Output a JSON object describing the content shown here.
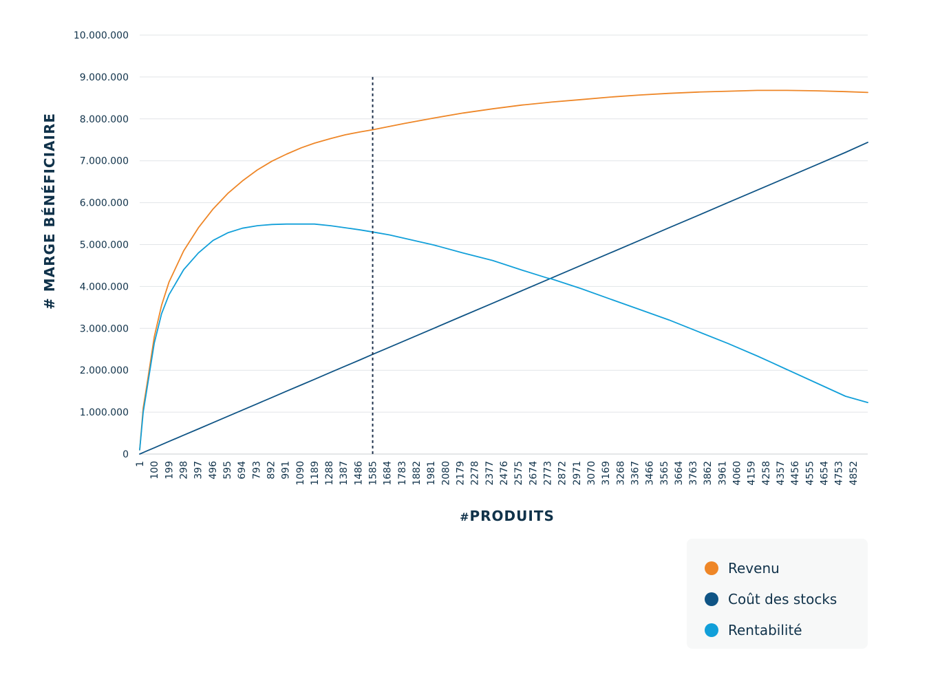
{
  "chart_data": {
    "type": "line",
    "title": "",
    "xlabel_prefix": "#",
    "xlabel": "PRODUITS",
    "ylabel": "# MARGE BÉNÉFICIAIRE",
    "x_ticks": [
      "1",
      "100",
      "199",
      "298",
      "397",
      "496",
      "595",
      "694",
      "793",
      "892",
      "991",
      "1090",
      "1189",
      "1288",
      "1387",
      "1486",
      "1585",
      "1684",
      "1783",
      "1882",
      "1981",
      "2080",
      "2179",
      "2278",
      "2377",
      "2476",
      "2575",
      "2674",
      "2773",
      "2872",
      "2971",
      "3070",
      "3169",
      "3268",
      "3367",
      "3466",
      "3565",
      "3664",
      "3763",
      "3862",
      "3961",
      "4060",
      "4159",
      "4258",
      "4357",
      "4456",
      "4555",
      "4654",
      "4753",
      "4852"
    ],
    "xlim": [
      1,
      4951
    ],
    "y_ticks": [
      "0",
      "1.000.000",
      "2.000.000",
      "3.000.000",
      "4.000.000",
      "5.000.000",
      "6.000.000",
      "7.000.000",
      "8.000.000",
      "9.000.000",
      "10.000.000"
    ],
    "ylim": [
      0,
      10000000
    ],
    "grid": true,
    "reference_line": {
      "x": 1585,
      "y_top": 9000000,
      "style": "dashed"
    },
    "x": [
      1,
      25,
      50,
      100,
      150,
      200,
      300,
      400,
      500,
      600,
      700,
      800,
      900,
      1000,
      1100,
      1189,
      1300,
      1400,
      1500,
      1585,
      1700,
      1800,
      2000,
      2200,
      2400,
      2600,
      2773,
      2800,
      3000,
      3200,
      3400,
      3600,
      3800,
      4000,
      4200,
      4300,
      4400,
      4600,
      4800,
      4951
    ],
    "series": [
      {
        "name": "Revenu",
        "color": "#ee8627",
        "values": [
          100000,
          1100000,
          1650000,
          2800000,
          3550000,
          4100000,
          4850000,
          5400000,
          5850000,
          6220000,
          6520000,
          6780000,
          6990000,
          7160000,
          7310000,
          7420000,
          7530000,
          7620000,
          7690000,
          7740000,
          7820000,
          7890000,
          8020000,
          8140000,
          8240000,
          8330000,
          8390000,
          8400000,
          8460000,
          8520000,
          8570000,
          8610000,
          8640000,
          8660000,
          8680000,
          8680000,
          8680000,
          8670000,
          8650000,
          8630000
        ]
      },
      {
        "name": "Coût des stocks",
        "color": "#0f5485",
        "values": [
          0,
          36000,
          75000,
          150000,
          225000,
          300000,
          450000,
          600000,
          750000,
          900000,
          1050000,
          1200000,
          1350000,
          1500000,
          1650000,
          1783000,
          1950000,
          2100000,
          2250000,
          2380000,
          2550000,
          2700000,
          3000000,
          3300000,
          3600000,
          3900000,
          4160000,
          4200000,
          4500000,
          4800000,
          5100000,
          5400000,
          5700000,
          6000000,
          6300000,
          6450000,
          6600000,
          6900000,
          7200000,
          7440000
        ]
      },
      {
        "name": "Rentabilité",
        "color": "#119fd9",
        "values": [
          100000,
          1000000,
          1550000,
          2650000,
          3350000,
          3800000,
          4400000,
          4800000,
          5100000,
          5280000,
          5390000,
          5450000,
          5480000,
          5490000,
          5490000,
          5490000,
          5450000,
          5400000,
          5350000,
          5300000,
          5230000,
          5150000,
          4990000,
          4800000,
          4620000,
          4390000,
          4200000,
          4180000,
          3950000,
          3700000,
          3450000,
          3200000,
          2920000,
          2640000,
          2340000,
          2180000,
          2020000,
          1700000,
          1380000,
          1230000
        ]
      }
    ]
  },
  "legend": {
    "items": [
      {
        "label": "Revenu",
        "color": "#ee8627"
      },
      {
        "label": "Coût des stocks",
        "color": "#0f5485"
      },
      {
        "label": "Rentabilité",
        "color": "#119fd9"
      }
    ]
  }
}
